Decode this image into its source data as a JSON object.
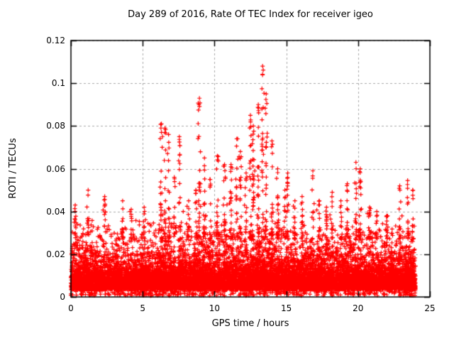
{
  "chart_data": {
    "type": "scatter",
    "title": "Day 289 of 2016, Rate Of TEC Index for receiver igeo",
    "xlabel": "GPS time / hours",
    "ylabel": "ROTI / TECUs",
    "xlim": [
      0,
      25
    ],
    "ylim": [
      0,
      0.12
    ],
    "xticks": [
      0,
      5,
      10,
      15,
      20,
      25
    ],
    "xtick_labels": [
      "0",
      "5",
      "10",
      "15",
      "20",
      "25"
    ],
    "yticks": [
      0,
      0.02,
      0.04,
      0.06,
      0.08,
      0.1,
      0.12
    ],
    "ytick_labels": [
      "0",
      "0.02",
      "0.04",
      "0.06",
      "0.08",
      "0.1",
      "0.12"
    ],
    "grid": {
      "on": true,
      "style": "dashed",
      "color": "#a8a8a8"
    },
    "legend": "none",
    "marker": {
      "shape": "plus",
      "size": 7,
      "color": "#ff0000"
    },
    "series_name": "ROTI",
    "data_time_range_hours": [
      0,
      24
    ],
    "seed": 289,
    "base_points_per_halfhour": 240,
    "band": {
      "floor": 0.0035,
      "dense_mean": 0.0052,
      "mid_mean": 0.0085,
      "speckle_top": 0.035
    },
    "bin_max_per_halfhour": [
      0.043,
      0.05,
      0.05,
      0.035,
      0.047,
      0.035,
      0.03,
      0.045,
      0.042,
      0.033,
      0.042,
      0.038,
      0.081,
      0.079,
      0.056,
      0.075,
      0.045,
      0.05,
      0.093,
      0.055,
      0.066,
      0.062,
      0.062,
      0.074,
      0.058,
      0.085,
      0.09,
      0.108,
      0.073,
      0.05,
      0.058,
      0.045,
      0.047,
      0.059,
      0.045,
      0.042,
      0.049,
      0.045,
      0.053,
      0.063,
      0.06,
      0.042,
      0.04,
      0.038,
      0.052,
      0.052,
      0.0545,
      0.05
    ],
    "spike_columns": [
      [
        0.3,
        0.043
      ],
      [
        1.2,
        0.05
      ],
      [
        2.35,
        0.047
      ],
      [
        3.6,
        0.045
      ],
      [
        4.2,
        0.041
      ],
      [
        5.1,
        0.042
      ],
      [
        6.3,
        0.081
      ],
      [
        6.55,
        0.079
      ],
      [
        6.8,
        0.076
      ],
      [
        7.2,
        0.056
      ],
      [
        7.55,
        0.075
      ],
      [
        8.2,
        0.045
      ],
      [
        8.7,
        0.05
      ],
      [
        8.95,
        0.093
      ],
      [
        9.3,
        0.065
      ],
      [
        9.7,
        0.055
      ],
      [
        10.2,
        0.066
      ],
      [
        10.7,
        0.062
      ],
      [
        11.15,
        0.062
      ],
      [
        11.55,
        0.074
      ],
      [
        11.8,
        0.068
      ],
      [
        12.2,
        0.058
      ],
      [
        12.5,
        0.085
      ],
      [
        12.7,
        0.08
      ],
      [
        13.05,
        0.09
      ],
      [
        13.35,
        0.108
      ],
      [
        13.6,
        0.095
      ],
      [
        14.0,
        0.073
      ],
      [
        14.4,
        0.06
      ],
      [
        14.9,
        0.05
      ],
      [
        15.1,
        0.058
      ],
      [
        15.6,
        0.045
      ],
      [
        16.1,
        0.047
      ],
      [
        16.85,
        0.059
      ],
      [
        17.3,
        0.045
      ],
      [
        17.8,
        0.042
      ],
      [
        18.2,
        0.049
      ],
      [
        18.8,
        0.045
      ],
      [
        19.25,
        0.053
      ],
      [
        19.85,
        0.063
      ],
      [
        20.15,
        0.06
      ],
      [
        20.8,
        0.042
      ],
      [
        21.3,
        0.04
      ],
      [
        22.0,
        0.038
      ],
      [
        22.9,
        0.052
      ],
      [
        23.45,
        0.0545
      ],
      [
        23.8,
        0.05
      ]
    ],
    "max_point": {
      "t": 13.35,
      "value": 0.108
    }
  }
}
